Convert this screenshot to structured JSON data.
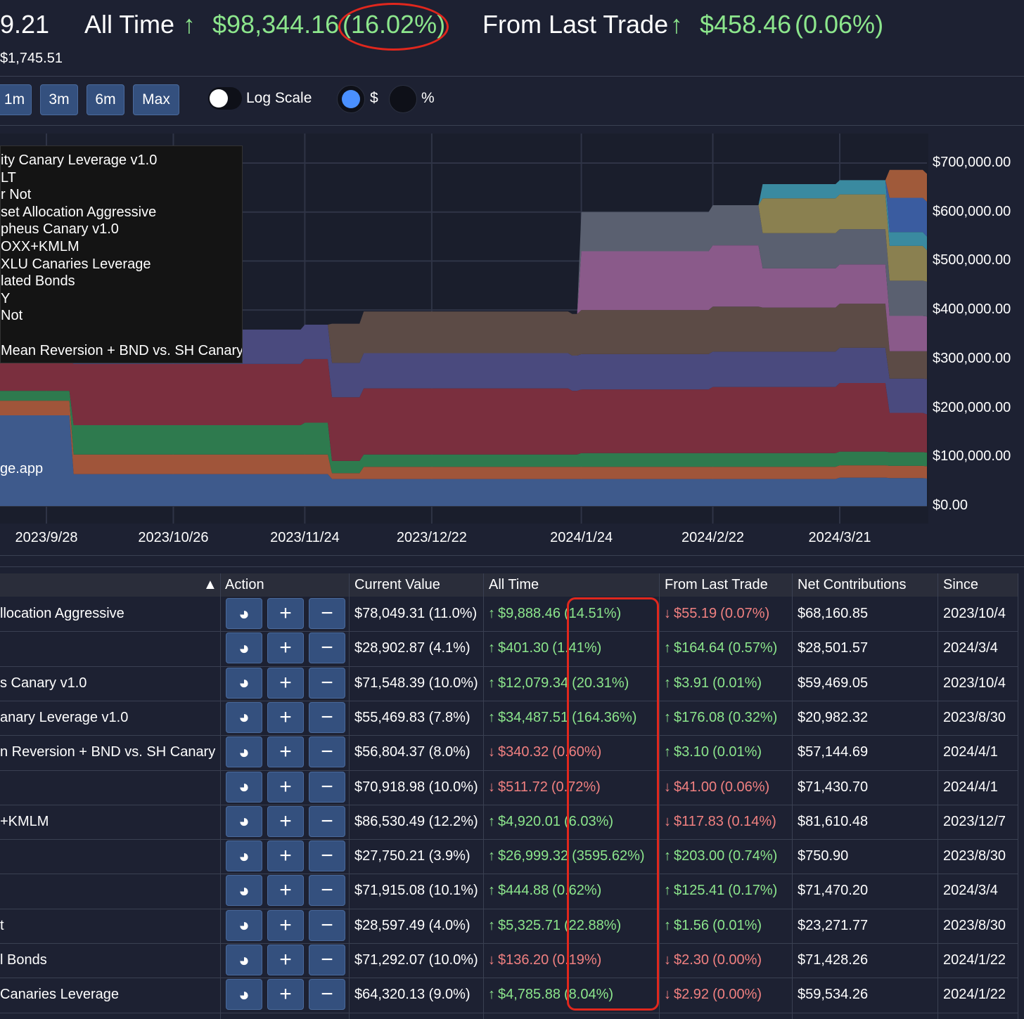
{
  "header": {
    "value_partial": "9.21",
    "sub_value": "$1,745.51",
    "all_time_label": "All Time",
    "all_time_change": "$98,344.16",
    "all_time_pct": "(16.02%)",
    "last_trade_label": "From Last Trade",
    "last_trade_change": "$458.46",
    "last_trade_pct": "(0.06%)",
    "up_arrow": "↑"
  },
  "controls": {
    "ranges": [
      "1m",
      "3m",
      "6m",
      "Max"
    ],
    "log_scale_label": "Log Scale",
    "log_scale_on": false,
    "unit_dollar": "$",
    "unit_percent": "%",
    "selected_unit": "$"
  },
  "legend": {
    "items": [
      "ity Canary Leverage v1.0",
      "LT",
      "r Not",
      "set Allocation Aggressive",
      "pheus Canary v1.0",
      "OXX+KMLM",
      "XLU Canaries Leverage",
      "lated Bonds",
      "Y",
      "Not",
      "",
      "Mean Reversion + BND vs. SH Canary"
    ]
  },
  "watermark": "ge.app",
  "chart_data": {
    "type": "area",
    "stacked": true,
    "x": [
      "2023/8/30",
      "2023/9/28",
      "2023/10/4",
      "2023/10/26",
      "2023/11/24",
      "2023/11/30",
      "2023/12/7",
      "2023/12/22",
      "2024/1/22",
      "2024/1/24",
      "2024/2/22",
      "2024/3/4",
      "2024/3/21",
      "2024/4/1",
      "2024/4/5"
    ],
    "x_ticks": [
      "2023/9/28",
      "2023/10/26",
      "2023/11/24",
      "2023/12/22",
      "2024/1/24",
      "2024/2/22",
      "2024/3/21"
    ],
    "y_ticks": [
      "$0.00",
      "$100,000.00",
      "$200,000.00",
      "$300,000.00",
      "$400,000.00",
      "$500,000.00",
      "$600,000.00",
      "$700,000.00"
    ],
    "ylim": [
      0,
      730000
    ],
    "series": [
      {
        "color": "#3e5a8c",
        "values": [
          185000,
          185000,
          65000,
          65000,
          65000,
          55000,
          55000,
          55000,
          55000,
          55000,
          55000,
          55000,
          58000,
          57000,
          56000
        ]
      },
      {
        "color": "#a0553a",
        "values": [
          30000,
          30000,
          40000,
          40000,
          40000,
          12000,
          25000,
          25000,
          25000,
          25000,
          25000,
          25000,
          25000,
          25000,
          25000
        ]
      },
      {
        "color": "#2e7a4e",
        "values": [
          20000,
          20000,
          60000,
          60000,
          65000,
          25000,
          25000,
          25000,
          25000,
          28000,
          28000,
          28000,
          28000,
          28000,
          28000
        ]
      },
      {
        "color": "#7a2f3e",
        "values": [
          60000,
          60000,
          125000,
          125000,
          130000,
          130000,
          135000,
          135000,
          130000,
          130000,
          135000,
          135000,
          140000,
          80000,
          78000
        ]
      },
      {
        "color": "#4a4a7e",
        "values": [
          50000,
          50000,
          70000,
          70000,
          70000,
          70000,
          72000,
          72000,
          72000,
          72000,
          72000,
          72000,
          72000,
          70000,
          72000
        ]
      },
      {
        "color": "#5c4b46",
        "values": [
          0,
          0,
          0,
          0,
          0,
          80000,
          85000,
          85000,
          85000,
          90000,
          92000,
          90000,
          90000,
          56000,
          57000
        ]
      },
      {
        "color": "#8a5a8a",
        "values": [
          0,
          0,
          0,
          0,
          0,
          0,
          0,
          0,
          0,
          120000,
          125000,
          80000,
          80000,
          72000,
          71000
        ]
      },
      {
        "color": "#5a6070",
        "values": [
          0,
          0,
          0,
          0,
          0,
          0,
          0,
          0,
          0,
          80000,
          82000,
          72000,
          72000,
          72000,
          71000
        ]
      },
      {
        "color": "#8a8050",
        "values": [
          0,
          0,
          0,
          0,
          0,
          0,
          0,
          0,
          0,
          0,
          0,
          71000,
          71000,
          71000,
          64000
        ]
      },
      {
        "color": "#3a8aa0",
        "values": [
          0,
          0,
          0,
          0,
          0,
          0,
          0,
          0,
          0,
          0,
          0,
          29000,
          29000,
          28000,
          28000
        ]
      },
      {
        "color": "#3a5ca0",
        "values": [
          0,
          0,
          0,
          0,
          0,
          0,
          0,
          0,
          0,
          0,
          0,
          0,
          0,
          70000,
          71000
        ]
      },
      {
        "color": "#a05a3a",
        "values": [
          0,
          0,
          0,
          0,
          0,
          0,
          0,
          0,
          0,
          0,
          0,
          0,
          0,
          57000,
          57000
        ]
      }
    ]
  },
  "table": {
    "sort_indicator": "▲",
    "headers": [
      "Action",
      "Current Value",
      "All Time",
      "From Last Trade",
      "Net Contributions",
      "Since"
    ],
    "action_icons": [
      "pie-chart-icon",
      "plus-icon",
      "minus-icon"
    ],
    "action_glyphs": [
      "◕",
      "+",
      "−"
    ],
    "rows": [
      {
        "name": "llocation Aggressive",
        "current": "$78,049.31 (11.0%)",
        "all_dir": "up",
        "all_amt": "$9,888.46",
        "all_pct": "(14.51%)",
        "last_dir": "down",
        "last_amt": "$55.19",
        "last_pct": "(0.07%)",
        "net": "$68,160.85",
        "since": "2023/10/4"
      },
      {
        "name": "",
        "current": "$28,902.87 (4.1%)",
        "all_dir": "up",
        "all_amt": "$401.30",
        "all_pct": "(1.41%)",
        "last_dir": "up",
        "last_amt": "$164.64",
        "last_pct": "(0.57%)",
        "net": "$28,501.57",
        "since": "2024/3/4"
      },
      {
        "name": "s Canary v1.0",
        "current": "$71,548.39 (10.0%)",
        "all_dir": "up",
        "all_amt": "$12,079.34",
        "all_pct": "(20.31%)",
        "last_dir": "up",
        "last_amt": "$3.91",
        "last_pct": "(0.01%)",
        "net": "$59,469.05",
        "since": "2023/10/4"
      },
      {
        "name": "anary Leverage v1.0",
        "current": "$55,469.83 (7.8%)",
        "all_dir": "up",
        "all_amt": "$34,487.51",
        "all_pct": "(164.36%)",
        "last_dir": "up",
        "last_amt": "$176.08",
        "last_pct": "(0.32%)",
        "net": "$20,982.32",
        "since": "2023/8/30"
      },
      {
        "name": "n Reversion + BND vs. SH Canary",
        "current": "$56,804.37 (8.0%)",
        "all_dir": "down",
        "all_amt": "$340.32",
        "all_pct": "(0.60%)",
        "last_dir": "up",
        "last_amt": "$3.10",
        "last_pct": "(0.01%)",
        "net": "$57,144.69",
        "since": "2024/4/1"
      },
      {
        "name": "",
        "current": "$70,918.98 (10.0%)",
        "all_dir": "down",
        "all_amt": "$511.72",
        "all_pct": "(0.72%)",
        "last_dir": "down",
        "last_amt": "$41.00",
        "last_pct": "(0.06%)",
        "net": "$71,430.70",
        "since": "2024/4/1"
      },
      {
        "name": "+KMLM",
        "current": "$86,530.49 (12.2%)",
        "all_dir": "up",
        "all_amt": "$4,920.01",
        "all_pct": "(6.03%)",
        "last_dir": "down",
        "last_amt": "$117.83",
        "last_pct": "(0.14%)",
        "net": "$81,610.48",
        "since": "2023/12/7"
      },
      {
        "name": "",
        "current": "$27,750.21 (3.9%)",
        "all_dir": "up",
        "all_amt": "$26,999.32",
        "all_pct": "(3595.62%)",
        "last_dir": "up",
        "last_amt": "$203.00",
        "last_pct": "(0.74%)",
        "net": "$750.90",
        "since": "2023/8/30"
      },
      {
        "name": "",
        "current": "$71,915.08 (10.1%)",
        "all_dir": "up",
        "all_amt": "$444.88",
        "all_pct": "(0.62%)",
        "last_dir": "up",
        "last_amt": "$125.41",
        "last_pct": "(0.17%)",
        "net": "$71,470.20",
        "since": "2024/3/4"
      },
      {
        "name": "t",
        "current": "$28,597.49 (4.0%)",
        "all_dir": "up",
        "all_amt": "$5,325.71",
        "all_pct": "(22.88%)",
        "last_dir": "up",
        "last_amt": "$1.56",
        "last_pct": "(0.01%)",
        "net": "$23,271.77",
        "since": "2023/8/30"
      },
      {
        "name": "l Bonds",
        "current": "$71,292.07 (10.0%)",
        "all_dir": "down",
        "all_amt": "$136.20",
        "all_pct": "(0.19%)",
        "last_dir": "down",
        "last_amt": "$2.30",
        "last_pct": "(0.00%)",
        "net": "$71,428.26",
        "since": "2024/1/22"
      },
      {
        "name": "Canaries Leverage",
        "current": "$64,320.13 (9.0%)",
        "all_dir": "up",
        "all_amt": "$4,785.88",
        "all_pct": "(8.04%)",
        "last_dir": "down",
        "last_amt": "$2.92",
        "last_pct": "(0.00%)",
        "net": "$59,534.26",
        "since": "2024/1/22"
      }
    ]
  },
  "colors": {
    "up": "#8ce68c",
    "down": "#f08080",
    "annotation": "#e0271d"
  }
}
